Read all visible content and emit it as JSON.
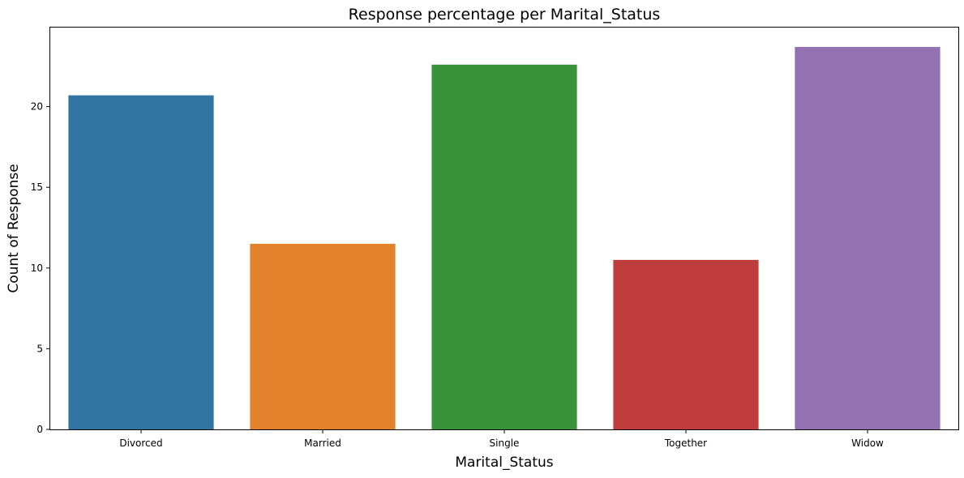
{
  "chart_data": {
    "type": "bar",
    "title": "Response percentage per Marital_Status",
    "xlabel": "Marital_Status",
    "ylabel": "Count of Response",
    "categories": [
      "Divorced",
      "Married",
      "Single",
      "Together",
      "Widow"
    ],
    "values": [
      20.7,
      11.5,
      22.6,
      10.5,
      23.7
    ],
    "colors": [
      "#3274a1",
      "#e1812c",
      "#3a923a",
      "#c03d3e",
      "#9372b2"
    ],
    "ylim": [
      0,
      24.9
    ],
    "yticks": [
      0,
      5,
      10,
      15,
      20
    ],
    "grid": false,
    "legend": "none"
  }
}
